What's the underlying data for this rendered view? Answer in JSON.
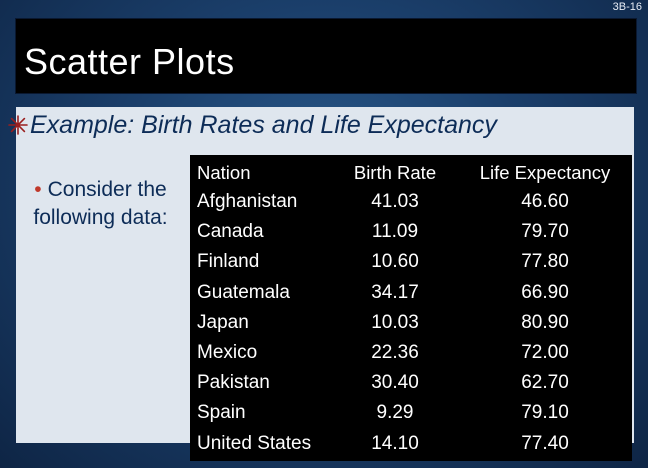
{
  "slide_number": "3B-16",
  "title": "Scatter Plots",
  "heading": "Example:  Birth Rates and Life Expectancy",
  "bullet": "Consider the following data:",
  "table": {
    "columns": [
      "Nation",
      "Birth Rate",
      "Life Expectancy"
    ],
    "rows": [
      [
        "Afghanistan",
        "41.03",
        "46.60"
      ],
      [
        "Canada",
        "11.09",
        "79.70"
      ],
      [
        "Finland",
        "10.60",
        "77.80"
      ],
      [
        "Guatemala",
        "34.17",
        "66.90"
      ],
      [
        "Japan",
        "10.03",
        "80.90"
      ],
      [
        "Mexico",
        "22.36",
        "72.00"
      ],
      [
        "Pakistan",
        "30.40",
        "62.70"
      ],
      [
        "Spain",
        "9.29",
        "79.10"
      ],
      [
        "United States",
        "14.10",
        "77.40"
      ]
    ]
  },
  "colors": {
    "title_bg": "#000000",
    "panel_bg": "#dfe6ee",
    "heading": "#0d2c57",
    "accent": "#c0392b"
  },
  "icons": {
    "heading": "snowflake-icon",
    "bullet": "bullet-dot"
  }
}
